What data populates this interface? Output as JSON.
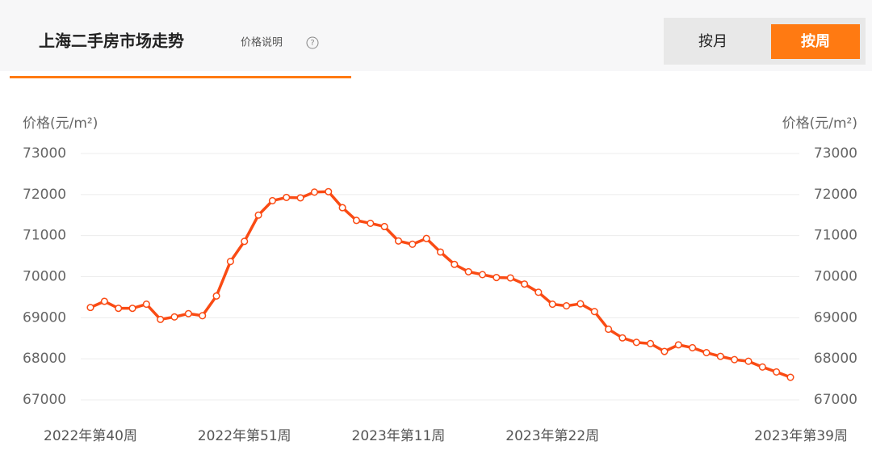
{
  "header": {
    "title": "上海二手房市场走势",
    "info": "价格说明",
    "tabs": [
      "按月",
      "按周"
    ]
  },
  "chart_data": {
    "type": "line",
    "ylabel": "价格(元/m²)",
    "y2label": "价格(元/m²)",
    "categories": [
      "2022年第40周",
      null,
      null,
      null,
      null,
      null,
      null,
      null,
      null,
      null,
      null,
      "2022年第51周",
      null,
      null,
      null,
      null,
      null,
      null,
      null,
      null,
      null,
      null,
      "2023年第11周",
      null,
      null,
      null,
      null,
      null,
      null,
      null,
      null,
      null,
      null,
      "2023年第22周",
      null,
      null,
      null,
      null,
      null,
      null,
      null,
      null,
      null,
      null,
      null,
      null,
      null,
      null,
      null,
      null,
      "2023年第39周"
    ],
    "values": [
      69250,
      69400,
      69230,
      69230,
      69330,
      68960,
      69020,
      69100,
      69050,
      69530,
      70370,
      70860,
      71500,
      71850,
      71930,
      71920,
      72060,
      72070,
      71680,
      71370,
      71300,
      71220,
      70870,
      70790,
      70930,
      70600,
      70300,
      70120,
      70050,
      69980,
      69970,
      69820,
      69620,
      69330,
      69290,
      69340,
      69150,
      68720,
      68510,
      68400,
      68370,
      68180,
      68340,
      68270,
      68150,
      68060,
      67980,
      67940,
      67800,
      67680,
      67550
    ],
    "color": "#fa4b14",
    "ylim": [
      67000,
      73000
    ],
    "yticks": [
      67000,
      68000,
      69000,
      70000,
      71000,
      72000,
      73000
    ],
    "y2lim": [
      67000,
      73000
    ],
    "y2ticks": [
      67000,
      68000,
      69000,
      70000,
      71000,
      72000,
      73000
    ],
    "grid": true
  }
}
